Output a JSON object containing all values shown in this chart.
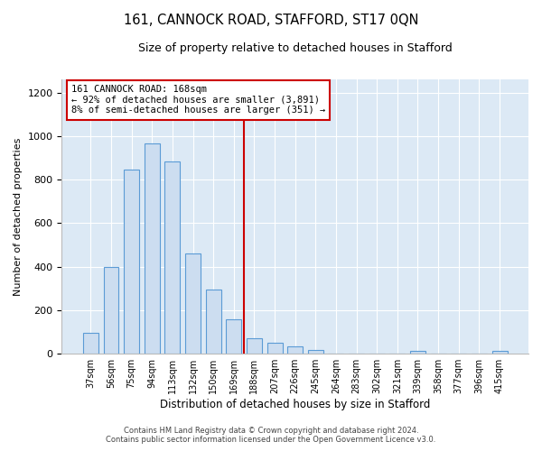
{
  "title": "161, CANNOCK ROAD, STAFFORD, ST17 0QN",
  "subtitle": "Size of property relative to detached houses in Stafford",
  "xlabel": "Distribution of detached houses by size in Stafford",
  "ylabel": "Number of detached properties",
  "bar_labels": [
    "37sqm",
    "56sqm",
    "75sqm",
    "94sqm",
    "113sqm",
    "132sqm",
    "150sqm",
    "169sqm",
    "188sqm",
    "207sqm",
    "226sqm",
    "245sqm",
    "264sqm",
    "283sqm",
    "302sqm",
    "321sqm",
    "339sqm",
    "358sqm",
    "377sqm",
    "396sqm",
    "415sqm"
  ],
  "bar_heights": [
    95,
    400,
    845,
    965,
    885,
    460,
    295,
    160,
    72,
    52,
    35,
    17,
    0,
    0,
    0,
    0,
    13,
    0,
    0,
    0,
    13
  ],
  "bar_color": "#ccddf0",
  "bar_edge_color": "#5b9bd5",
  "vline_x": 7.5,
  "vline_color": "#cc0000",
  "annotation_line1": "161 CANNOCK ROAD: 168sqm",
  "annotation_line2": "← 92% of detached houses are smaller (3,891)",
  "annotation_line3": "8% of semi-detached houses are larger (351) →",
  "annotation_box_edge": "#cc0000",
  "annotation_box_bg": "white",
  "ylim": [
    0,
    1260
  ],
  "yticks": [
    0,
    200,
    400,
    600,
    800,
    1000,
    1200
  ],
  "footer_line1": "Contains HM Land Registry data © Crown copyright and database right 2024.",
  "footer_line2": "Contains public sector information licensed under the Open Government Licence v3.0.",
  "fig_bg_color": "#ffffff",
  "plot_bg_color": "#dce9f5",
  "grid_color": "#ffffff"
}
